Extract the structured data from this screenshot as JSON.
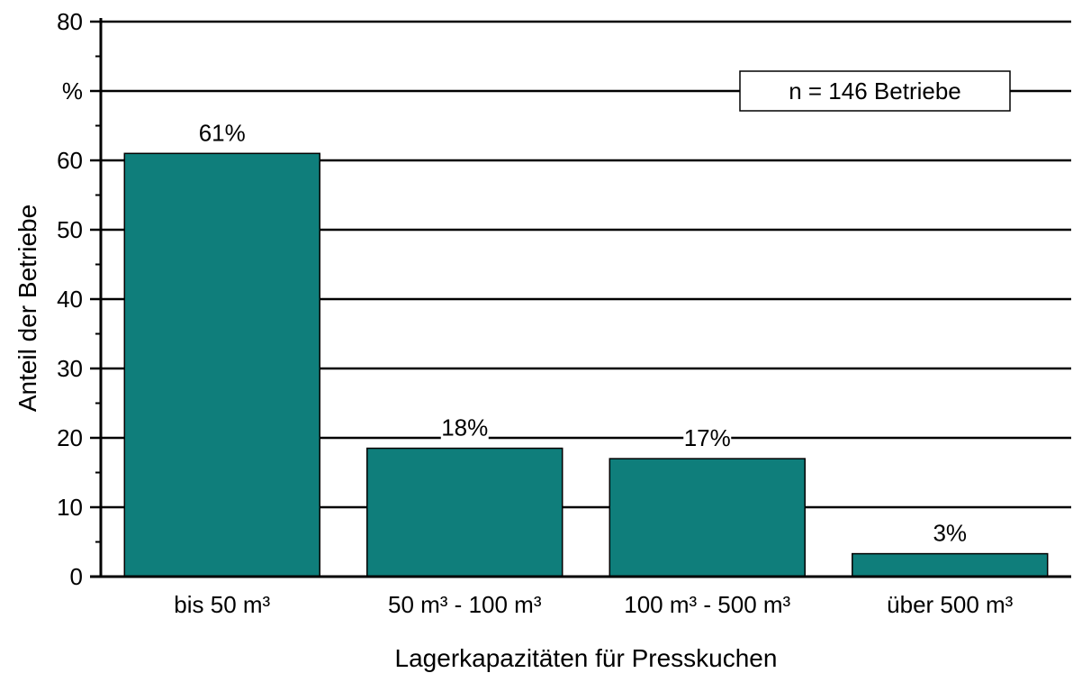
{
  "chart_data": {
    "type": "bar",
    "categories": [
      "bis 50 m³",
      "50 m³ - 100 m³",
      "100 m³ - 500 m³",
      "über 500 m³"
    ],
    "values": [
      61,
      18.5,
      17,
      3.3
    ],
    "data_labels": [
      "61%",
      "18%",
      "17%",
      "3%"
    ],
    "xlabel": "Lagerkapazitäten für Presskuchen",
    "ylabel": "Anteil der Betriebe",
    "ylim": [
      0,
      80
    ],
    "yticks": [
      0,
      10,
      20,
      30,
      40,
      50,
      60,
      70,
      80
    ],
    "ytick_labels": [
      "0",
      "10",
      "20",
      "30",
      "40",
      "50",
      "60",
      "%",
      "80"
    ],
    "grid": true,
    "annotation": "n = 146 Betriebe",
    "annotation_placement": "top-right",
    "bar_color": "#0f7e7b",
    "bar_edge_color": "#000000"
  }
}
